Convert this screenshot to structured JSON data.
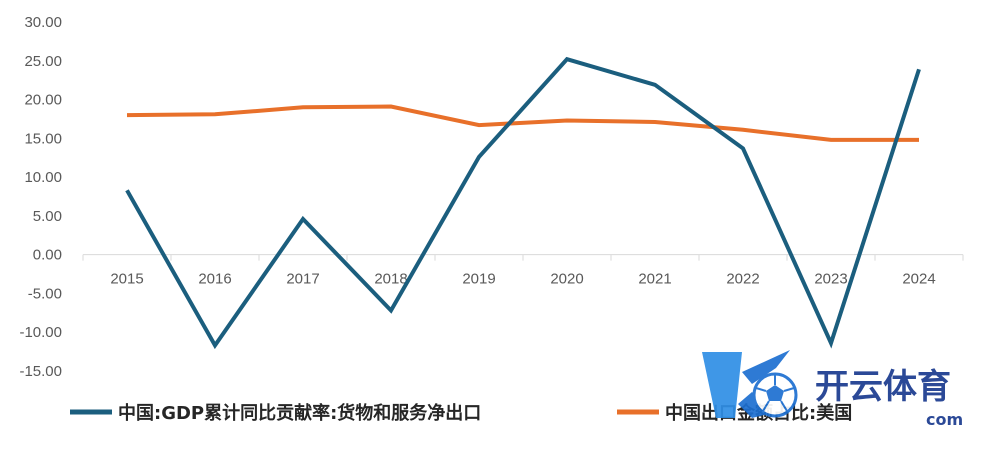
{
  "chart_data": {
    "type": "line",
    "categories": [
      "2015",
      "2016",
      "2017",
      "2018",
      "2019",
      "2020",
      "2021",
      "2022",
      "2023",
      "2024"
    ],
    "series": [
      {
        "name": "中国:GDP累计同比贡献率:货物和服务净出口",
        "color": "#1b5e7e",
        "values": [
          8.3,
          -11.7,
          4.6,
          -7.2,
          12.6,
          25.2,
          21.9,
          13.7,
          -11.4,
          23.9
        ]
      },
      {
        "name": "中国出口金额占比:美国",
        "color": "#e8702a",
        "values": [
          18.0,
          18.1,
          19.0,
          19.1,
          16.7,
          17.3,
          17.1,
          16.1,
          14.8,
          14.8
        ]
      }
    ],
    "y_ticks": [
      "30.00",
      "25.00",
      "20.00",
      "15.00",
      "10.00",
      "5.00",
      "0.00",
      "-5.00",
      "-10.00",
      "-15.00"
    ],
    "ylim": [
      -15,
      30
    ],
    "grid": false,
    "legend": "bottom"
  },
  "watermark": {
    "brand": "开云体育",
    "sub": "com",
    "logo_icon": "soccer-ball-k-logo-icon"
  }
}
